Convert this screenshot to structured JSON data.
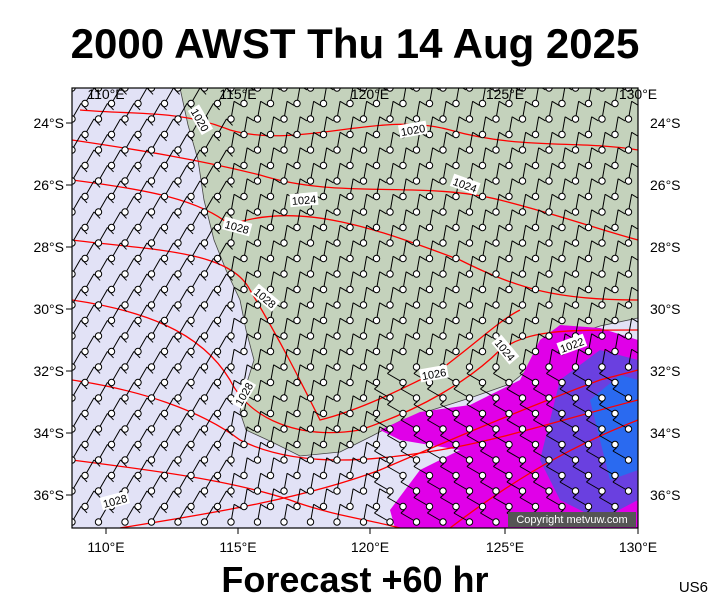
{
  "title": "2000 AWST Thu 14 Aug 2025",
  "lon_labels": [
    "110°E",
    "115°E",
    "120°E",
    "125°E",
    "130°E"
  ],
  "lat_labels": [
    "24°S",
    "26°S",
    "28°S",
    "30°S",
    "32°S",
    "34°S",
    "36°S"
  ],
  "isobar_labels": [
    "1020",
    "1020",
    "1024",
    "1024",
    "1028",
    "1028",
    "1024",
    "1022",
    "1026",
    "1028",
    "1028"
  ],
  "copyright": "Copyright metvuw.com",
  "footer": "Forecast +60 hr",
  "code": "US6"
}
